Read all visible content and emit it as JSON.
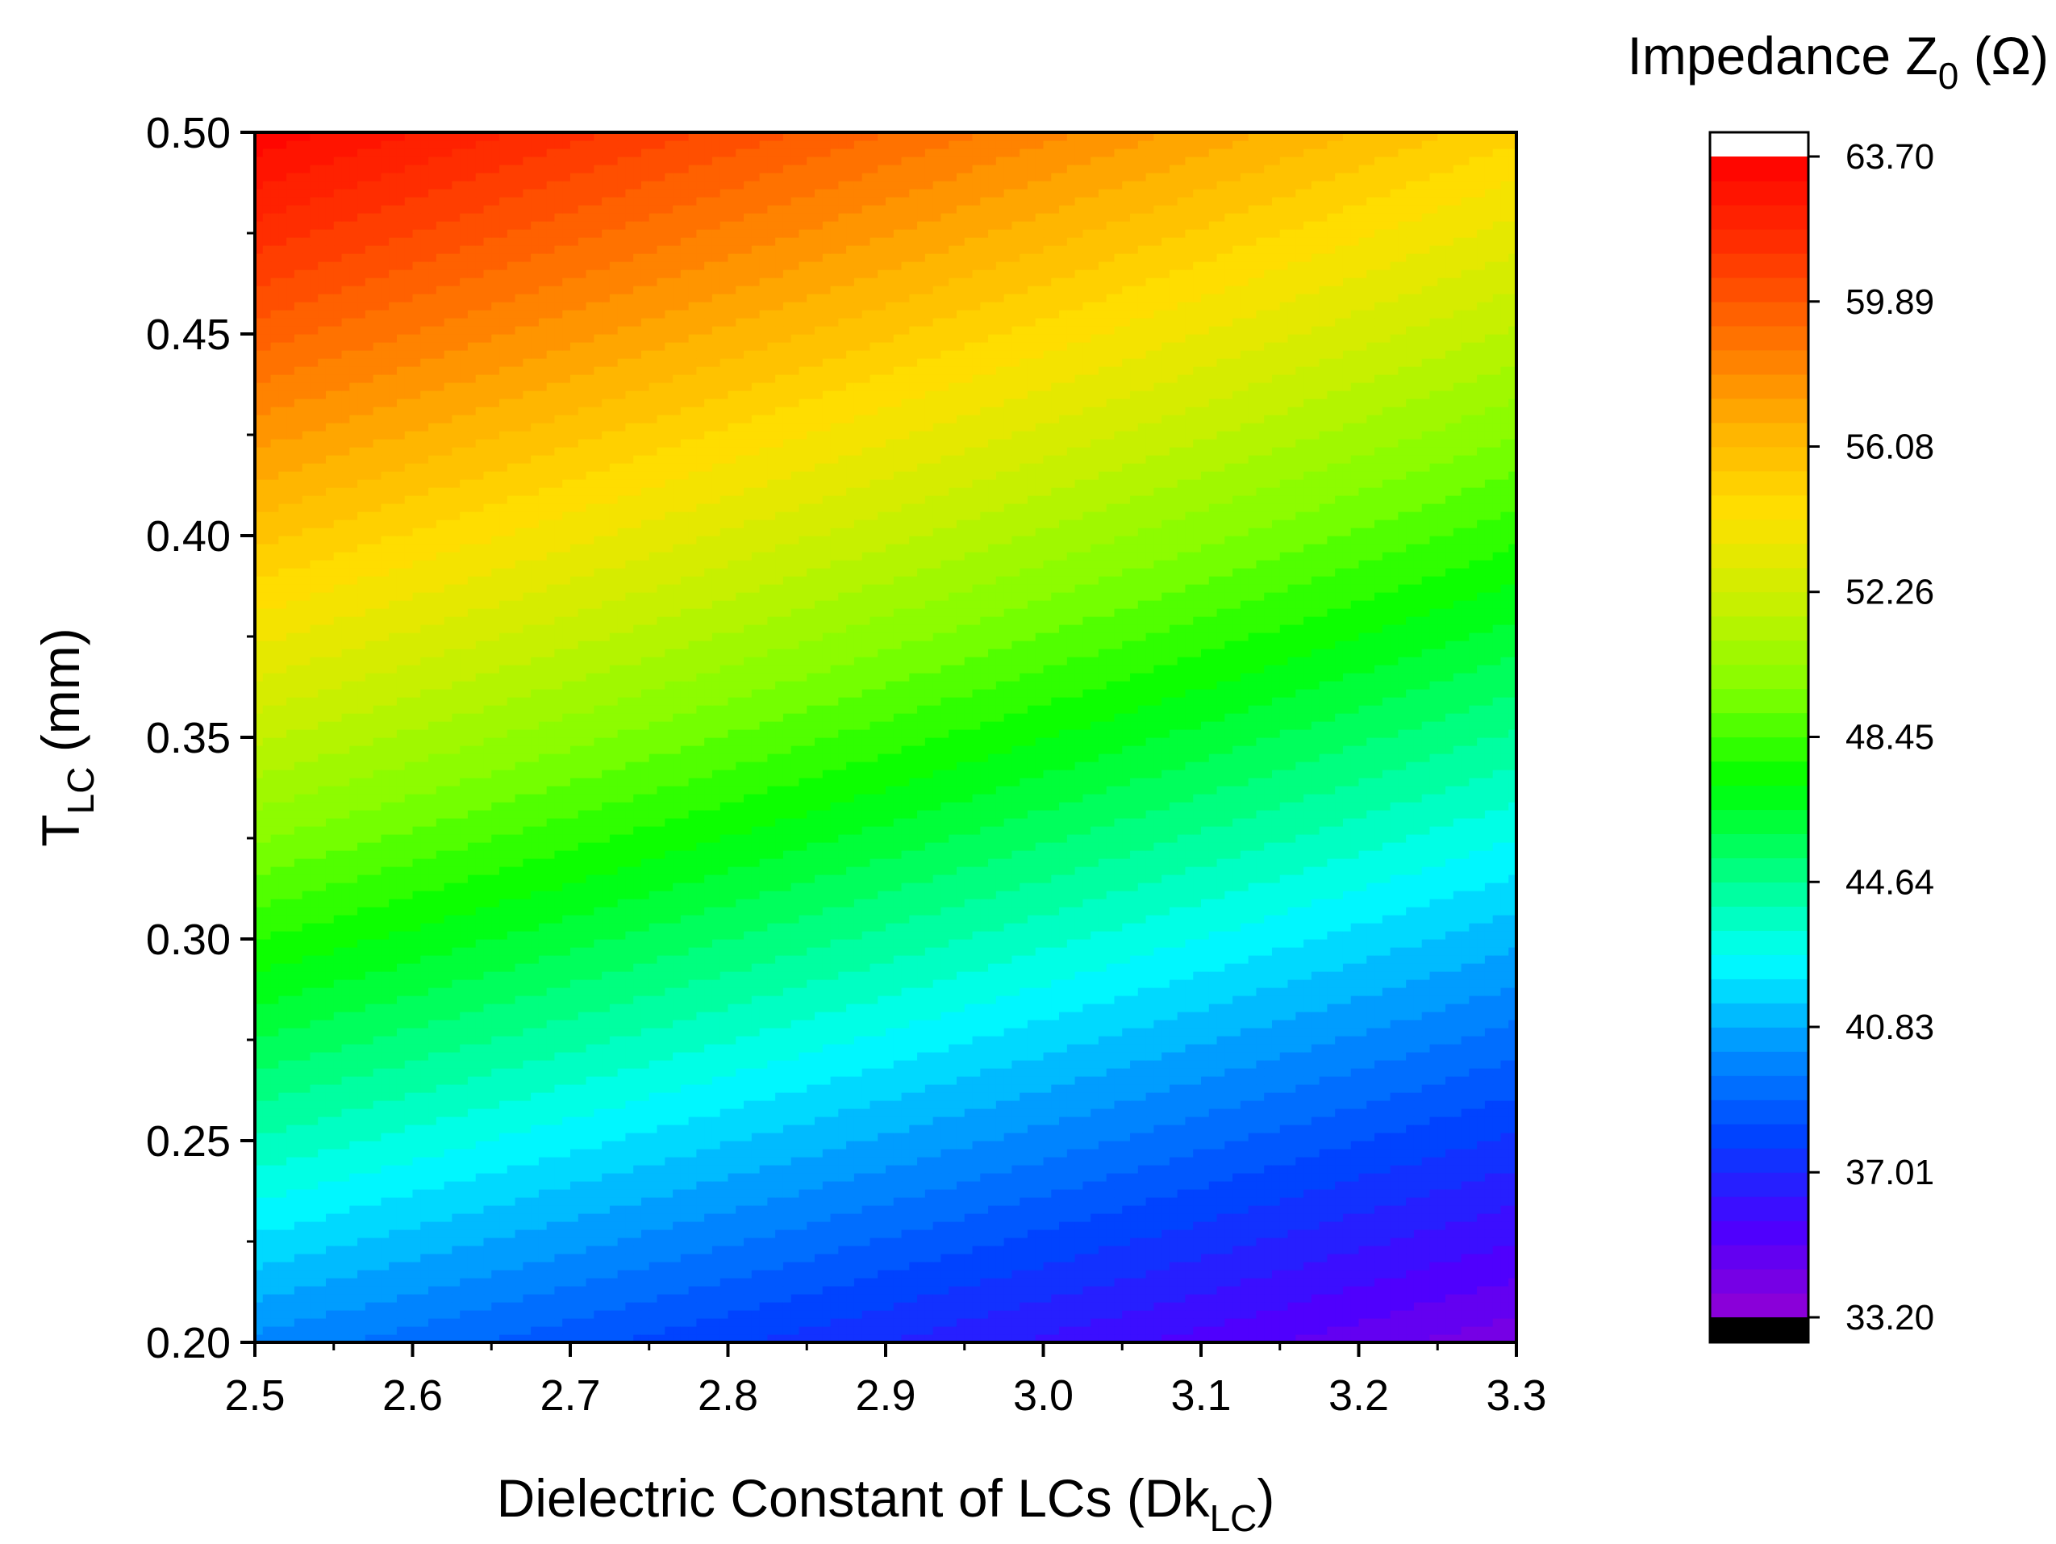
{
  "chart_data": {
    "type": "heatmap",
    "title": "",
    "xlabel": {
      "main": "Dielectric Constant of LCs (Dk",
      "sub": "LC",
      "end": ")"
    },
    "ylabel": {
      "main": "T",
      "sub": "LC",
      "end": " (mm)"
    },
    "xlim": [
      2.5,
      3.3
    ],
    "ylim": [
      0.2,
      0.5
    ],
    "x_ticks": [
      "2.5",
      "2.6",
      "2.7",
      "2.8",
      "2.9",
      "3.0",
      "3.1",
      "3.2",
      "3.3"
    ],
    "y_ticks": [
      "0.20",
      "0.25",
      "0.30",
      "0.35",
      "0.40",
      "0.45",
      "0.50"
    ],
    "colorbar": {
      "title": {
        "main": "Impedance Z",
        "sub": "0",
        "end": " (Ω)"
      },
      "range": [
        33.2,
        63.7
      ],
      "levels": 48,
      "ticks": [
        "63.70",
        "59.89",
        "56.08",
        "52.26",
        "48.45",
        "44.64",
        "40.83",
        "37.01",
        "33.20"
      ],
      "over_color": "#ffffff",
      "under_color": "#000000"
    },
    "z_samples": {
      "x": [
        2.5,
        3.3
      ],
      "y": [
        0.2,
        0.5
      ],
      "z": [
        [
          40.0,
          34.0
        ],
        [
          63.5,
          55.0
        ]
      ]
    },
    "colormap": [
      "#9400d3",
      "#4b00ff",
      "#0040ff",
      "#0090ff",
      "#00ffff",
      "#00ff80",
      "#00ff00",
      "#80ff00",
      "#c8f000",
      "#ffe000",
      "#ffb000",
      "#ff7000",
      "#ff3000",
      "#ff0000"
    ]
  }
}
